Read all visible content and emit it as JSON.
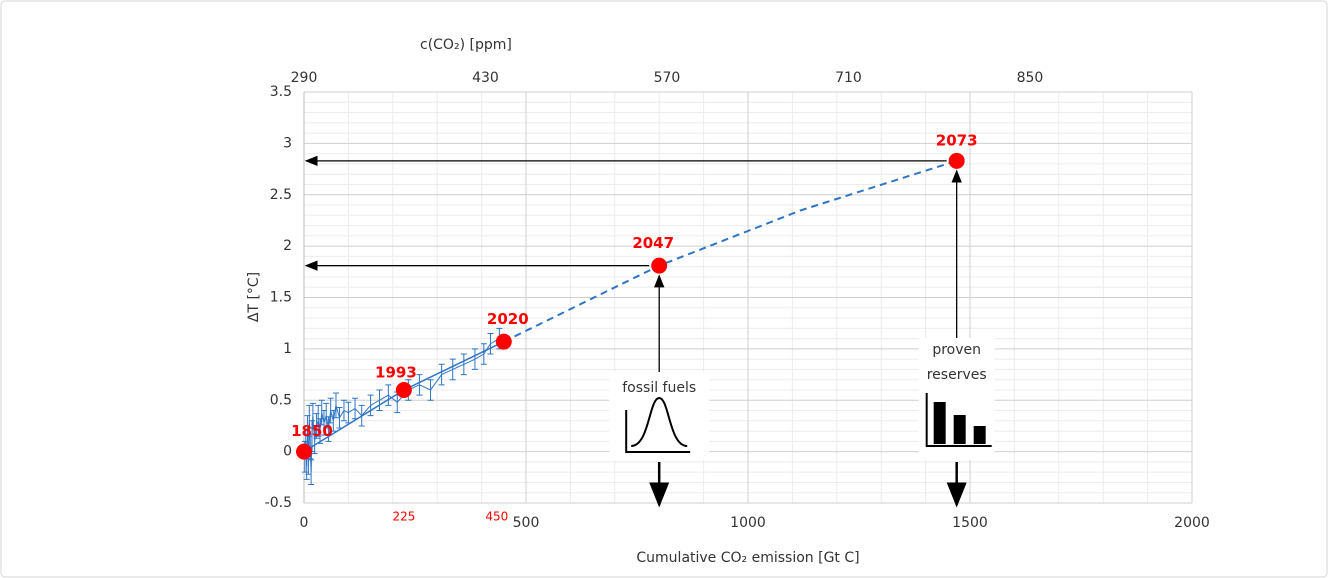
{
  "chart_data": {
    "type": "scatter",
    "x_label": "Cumulative CO₂ emission [Gt C]",
    "y_label": "ΔT [°C]",
    "x2_label": "c(CO₂) [ppm]",
    "xlim": [
      0,
      2000
    ],
    "xticks": [
      0,
      500,
      1000,
      1500,
      2000
    ],
    "x2lim": [
      290,
      975
    ],
    "x2ticks": [
      290,
      430,
      570,
      710,
      850
    ],
    "ylim": [
      -0.5,
      3.5
    ],
    "yticks": [
      -0.5,
      0,
      0.5,
      1,
      1.5,
      2,
      2.5,
      3,
      3.5
    ],
    "grid": true,
    "minor_grid": true,
    "observations": {
      "color": "#2e75c6",
      "x": [
        2,
        4,
        6,
        8,
        10,
        12,
        14,
        16,
        18,
        20,
        24,
        28,
        32,
        36,
        40,
        45,
        50,
        55,
        60,
        66,
        72,
        80,
        90,
        100,
        115,
        130,
        150,
        170,
        190,
        210,
        235,
        260,
        285,
        310,
        335,
        360,
        385,
        405,
        420,
        440
      ],
      "values": [
        -0.05,
        0.1,
        -0.15,
        0.2,
        -0.1,
        0.3,
        0.05,
        -0.2,
        0.15,
        0.35,
        0.1,
        0.25,
        0.3,
        0.2,
        0.38,
        0.28,
        0.35,
        0.22,
        0.4,
        0.3,
        0.45,
        0.33,
        0.4,
        0.38,
        0.42,
        0.35,
        0.45,
        0.5,
        0.55,
        0.48,
        0.6,
        0.65,
        0.6,
        0.75,
        0.8,
        0.85,
        0.9,
        0.95,
        1.05,
        1.1
      ],
      "errors": [
        0.15,
        0.12,
        0.12,
        0.15,
        0.12,
        0.15,
        0.12,
        0.12,
        0.15,
        0.12,
        0.12,
        0.12,
        0.15,
        0.12,
        0.12,
        0.12,
        0.12,
        0.12,
        0.12,
        0.1,
        0.12,
        0.1,
        0.1,
        0.1,
        0.1,
        0.1,
        0.1,
        0.1,
        0.1,
        0.1,
        0.1,
        0.1,
        0.1,
        0.1,
        0.1,
        0.1,
        0.1,
        0.1,
        0.1,
        0.1
      ]
    },
    "fit": {
      "color": "#2e75c6",
      "x": [
        0,
        225,
        450
      ],
      "values": [
        0,
        0.6,
        1.07
      ]
    },
    "projection": {
      "color": "#2e75c6",
      "style": "dashed",
      "x": [
        450,
        800,
        1120,
        1470
      ],
      "values": [
        1.07,
        1.81,
        2.35,
        2.83
      ]
    },
    "milestones": {
      "color": "#ff0000",
      "labels": [
        "1850",
        "1993",
        "2020",
        "2047",
        "2073"
      ],
      "x": [
        0,
        225,
        450,
        800,
        1470
      ],
      "values": [
        0,
        0.6,
        1.07,
        1.81,
        2.83
      ]
    },
    "annotations": {
      "x_marks": [
        "225",
        "450"
      ],
      "fossil_fuels": "fossil fuels",
      "proven_reserves": [
        "proven",
        "reserves"
      ]
    }
  }
}
